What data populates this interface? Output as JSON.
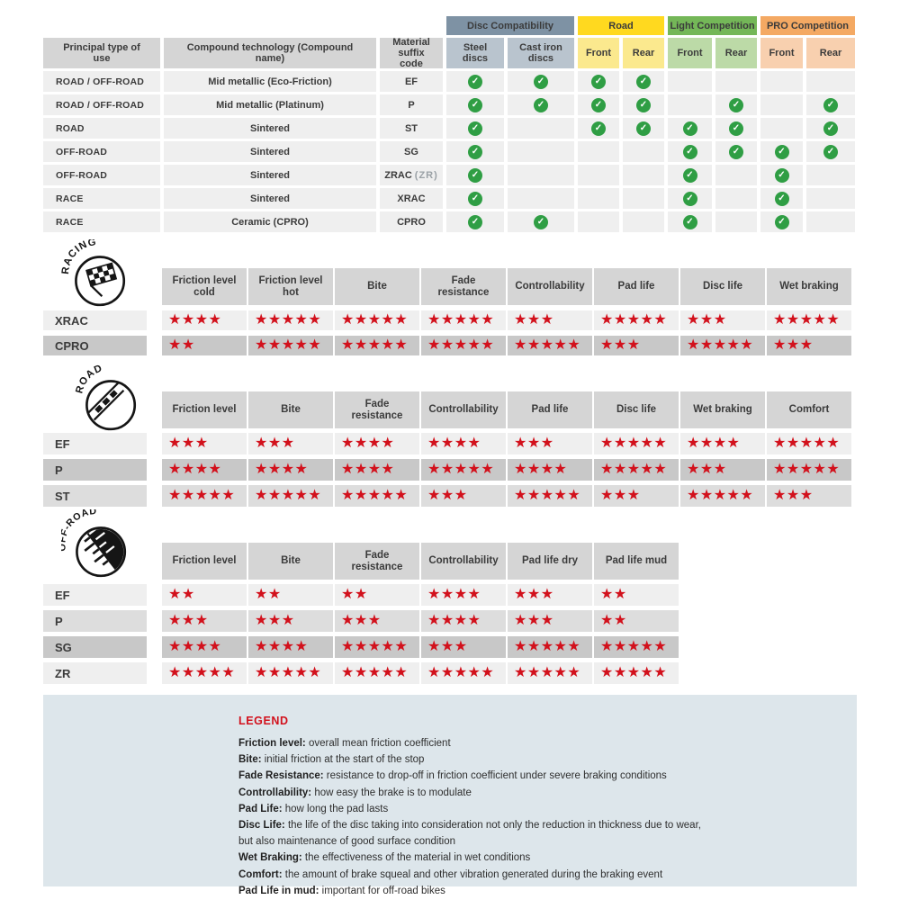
{
  "colors": {
    "star_red": "#d2111c",
    "check_green": "#2f9e44",
    "legend_bg": "#dde6eb",
    "header_gray": "#d5d5d5",
    "row_light": "#efefef",
    "row_mid": "#dddddd",
    "row_dark": "#c8c8c8",
    "slate": "#7e92a4",
    "slate_light": "#b9c4ce",
    "yellow": "#ffd91f",
    "yellow_light": "#fbe98e",
    "green": "#74b758",
    "green_light": "#bcdaa7",
    "orange": "#f4a963",
    "orange_light": "#f8d0af"
  },
  "compat": {
    "headers": {
      "principal": "Principal type of use",
      "compound": "Compound technology (Compound name)",
      "suffix": "Material suffix code"
    },
    "groups": [
      {
        "key": "disc-compatibility",
        "label": "Disc Compatibility",
        "color_key": "slate",
        "subs": [
          "Steel discs",
          "Cast iron discs"
        ]
      },
      {
        "key": "road",
        "label": "Road",
        "color_key": "yellow",
        "subs": [
          "Front",
          "Rear"
        ]
      },
      {
        "key": "light-competition",
        "label": "Light Competition",
        "color_key": "green",
        "subs": [
          "Front",
          "Rear"
        ]
      },
      {
        "key": "pro-competition",
        "label": "PRO Competition",
        "color_key": "orange",
        "subs": [
          "Front",
          "Rear"
        ]
      }
    ],
    "rows": [
      {
        "use": "ROAD / OFF-ROAD",
        "compound": "Mid metallic (Eco-Friction)",
        "suffix": "EF",
        "suffix_note": "",
        "checks": [
          1,
          1,
          1,
          1,
          0,
          0,
          0,
          0
        ]
      },
      {
        "use": "ROAD / OFF-ROAD",
        "compound": "Mid metallic (Platinum)",
        "suffix": "P",
        "suffix_note": "",
        "checks": [
          1,
          1,
          1,
          1,
          0,
          1,
          0,
          1
        ]
      },
      {
        "use": "ROAD",
        "compound": "Sintered",
        "suffix": "ST",
        "suffix_note": "",
        "checks": [
          1,
          0,
          1,
          1,
          1,
          1,
          0,
          1
        ]
      },
      {
        "use": "OFF-ROAD",
        "compound": "Sintered",
        "suffix": "SG",
        "suffix_note": "",
        "checks": [
          1,
          0,
          0,
          0,
          1,
          1,
          1,
          1
        ]
      },
      {
        "use": "OFF-ROAD",
        "compound": "Sintered",
        "suffix": "ZRAC",
        "suffix_note": "(ZR)",
        "checks": [
          1,
          0,
          0,
          0,
          1,
          0,
          1,
          0
        ]
      },
      {
        "use": "RACE",
        "compound": "Sintered",
        "suffix": "XRAC",
        "suffix_note": "",
        "checks": [
          1,
          0,
          0,
          0,
          1,
          0,
          1,
          0
        ]
      },
      {
        "use": "RACE",
        "compound": "Ceramic (CPRO)",
        "suffix": "CPRO",
        "suffix_note": "",
        "checks": [
          1,
          1,
          0,
          0,
          1,
          0,
          1,
          0
        ]
      }
    ]
  },
  "sections": [
    {
      "id": "racing",
      "arc_label": "RACING",
      "icon": "racing-flag-icon",
      "columns": [
        "Friction level cold",
        "Friction level hot",
        "Bite",
        "Fade resistance",
        "Controllability",
        "Pad life",
        "Disc life",
        "Wet braking"
      ],
      "rows": [
        {
          "label": "XRAC",
          "shade": "light",
          "stars": [
            4,
            5,
            5,
            5,
            3,
            5,
            3,
            5
          ]
        },
        {
          "label": "CPRO",
          "shade": "dark",
          "stars": [
            2,
            5,
            5,
            5,
            5,
            3,
            5,
            3
          ]
        }
      ]
    },
    {
      "id": "road",
      "arc_label": "ROAD",
      "icon": "road-icon",
      "columns": [
        "Friction level",
        "Bite",
        "Fade resistance",
        "Controllability",
        "Pad life",
        "Disc life",
        "Wet braking",
        "Comfort"
      ],
      "rows": [
        {
          "label": "EF",
          "shade": "light",
          "stars": [
            3,
            3,
            4,
            4,
            3,
            5,
            4,
            5
          ]
        },
        {
          "label": "P",
          "shade": "dark",
          "stars": [
            4,
            4,
            4,
            5,
            4,
            5,
            3,
            5
          ]
        },
        {
          "label": "ST",
          "shade": "mid",
          "stars": [
            5,
            5,
            5,
            3,
            5,
            3,
            5,
            3
          ]
        }
      ]
    },
    {
      "id": "offroad",
      "arc_label": "OFF-ROAD",
      "icon": "offroad-mud-icon",
      "columns": [
        "Friction level",
        "Bite",
        "Fade resistance",
        "Controllability",
        "Pad life dry",
        "Pad life mud"
      ],
      "rows": [
        {
          "label": "EF",
          "shade": "light",
          "stars": [
            2,
            2,
            2,
            4,
            3,
            2
          ]
        },
        {
          "label": "P",
          "shade": "mid",
          "stars": [
            3,
            3,
            3,
            4,
            3,
            2
          ]
        },
        {
          "label": "SG",
          "shade": "dark",
          "stars": [
            4,
            4,
            5,
            3,
            5,
            5
          ]
        },
        {
          "label": "ZR",
          "shade": "light",
          "stars": [
            5,
            5,
            5,
            5,
            5,
            5
          ]
        }
      ]
    }
  ],
  "legend": {
    "title": "LEGEND",
    "items": [
      {
        "term": "Friction level",
        "desc": "overall mean friction coefficient"
      },
      {
        "term": "Bite",
        "desc": "initial friction at the start of the stop"
      },
      {
        "term": "Fade Resistance",
        "desc": "resistance to drop-off in friction coefficient under severe braking conditions"
      },
      {
        "term": "Controllability",
        "desc": "how easy the brake is to modulate"
      },
      {
        "term": "Pad Life",
        "desc": "how long the pad lasts"
      },
      {
        "term": "Disc Life",
        "desc": "the life of the disc taking into consideration not only the reduction in thickness due to wear,"
      },
      {
        "term": "",
        "desc": "but also maintenance of good surface condition"
      },
      {
        "term": "Wet Braking",
        "desc": "the effectiveness of the material in wet conditions"
      },
      {
        "term": "Comfort",
        "desc": "the amount of brake squeal and other vibration generated during the braking event"
      },
      {
        "term": "Pad Life in mud",
        "desc": "important for off-road bikes"
      }
    ]
  }
}
